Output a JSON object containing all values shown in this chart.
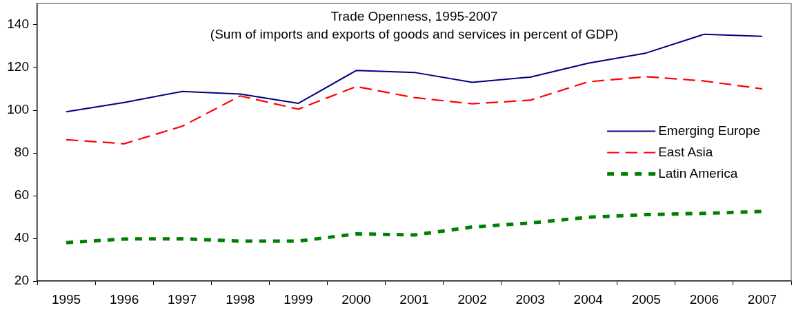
{
  "chart_data": {
    "type": "line",
    "title": "Trade Openness, 1995-2007",
    "subtitle": "(Sum of imports and exports of goods and services in percent of GDP)",
    "categories": [
      "1995",
      "1996",
      "1997",
      "1998",
      "1999",
      "2000",
      "2001",
      "2002",
      "2003",
      "2004",
      "2005",
      "2006",
      "2007"
    ],
    "series": [
      {
        "name": "Emerging Europe",
        "color": "#000080",
        "line_style": "solid",
        "values": [
          99.3,
          103.6,
          108.8,
          107.6,
          103.2,
          118.6,
          117.7,
          113.1,
          115.5,
          122,
          126.8,
          135.6,
          134.6
        ]
      },
      {
        "name": "East Asia",
        "color": "#ff0000",
        "line_style": "dashed",
        "values": [
          86.2,
          84.3,
          92.5,
          106.7,
          100.5,
          111.1,
          105.9,
          103,
          104.7,
          113.3,
          115.7,
          113.7,
          110
        ]
      },
      {
        "name": "Latin America",
        "color": "#008000",
        "line_style": "dotted",
        "values": [
          38,
          39.7,
          39.8,
          38.7,
          38.7,
          42.1,
          41.6,
          45.3,
          47.2,
          49.9,
          51.1,
          51.7,
          52.6
        ]
      }
    ],
    "ylim": [
      20,
      150
    ],
    "yticks": [
      20,
      40,
      60,
      80,
      100,
      120,
      140
    ],
    "grid": false,
    "legend": "right",
    "marker": "none"
  }
}
